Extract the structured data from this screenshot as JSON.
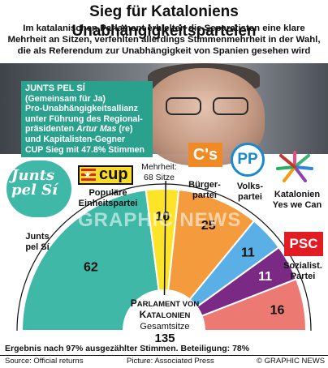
{
  "title": "Sieg für Kataloniens Unabhängigkeitsparteien",
  "subtitle": "Im katalanischen Parlament erhielten die Separatisten eine klare Mehrheit an Sitzen, verfehlten allerdings Stimmenmehrheit in der Wahl, die als Referendum zur Unabhängigkeit von Spanien gesehen wird",
  "infobox": {
    "head": "JUNTS PEL SÍ",
    "line1": "(Gemeinsam für Ja)",
    "line2": "Pro-Unabhängigkeitsallianz",
    "line3": "unter Führung des Regional-",
    "line4a": "präsidenten ",
    "line4_name": "Artur Mas",
    "line4b": " (re)",
    "line5": "und Kapitalisten-Gegner",
    "line6": "CUP Sieg mit 47.8% Stimmen"
  },
  "logos": {
    "junts": "Junts pel Sí",
    "cup": "cup",
    "cs": "C's",
    "pp": "PP",
    "psc": "PSC"
  },
  "watermark": "GRAPHIC NEWS",
  "majority": {
    "label": "Mehrheit:",
    "value": "68 Sitze"
  },
  "party_labels": {
    "junts": [
      "Junts",
      "pel Sí"
    ],
    "cup": [
      "Populäre",
      "Einheitspartei"
    ],
    "cs": [
      "Bürger-",
      "partei"
    ],
    "pp": [
      "Volks-",
      "partei"
    ],
    "cat": [
      "Katalonien",
      "Yes we Can"
    ],
    "psc": [
      "Sozialist.",
      "Partei"
    ]
  },
  "parliament": {
    "name_prefix": "P",
    "name_rest": "ARLAMENT VON",
    "name2_prefix": "K",
    "name2_rest": "ATALONIEN",
    "total_label": "Gesamtsitze",
    "total": "135"
  },
  "footer": {
    "result": "Ergebnis nach 97% ausgezählter Stimmen.  Beteiligung: 78%",
    "source": "Source:  Official returns",
    "picture": "Picture: Associated Press",
    "credit": "© GRAPHIC NEWS"
  },
  "colors": {
    "junts": "#3fb8a8",
    "cup": "#fde428",
    "cs": "#f39b3d",
    "pp": "#5ab0e6",
    "cat": "#7a2a84",
    "psc": "#ec7a73"
  },
  "chart_data": {
    "type": "pie",
    "subtype": "hemicycle",
    "categories": [
      "Junts pel Sí",
      "Populäre Einheitspartei",
      "Bürgerpartei",
      "Volkspartei",
      "Katalonien Yes we Can",
      "Sozialist. Partei"
    ],
    "values": [
      62,
      10,
      25,
      11,
      11,
      16
    ],
    "total": 135,
    "majority": 68
  }
}
